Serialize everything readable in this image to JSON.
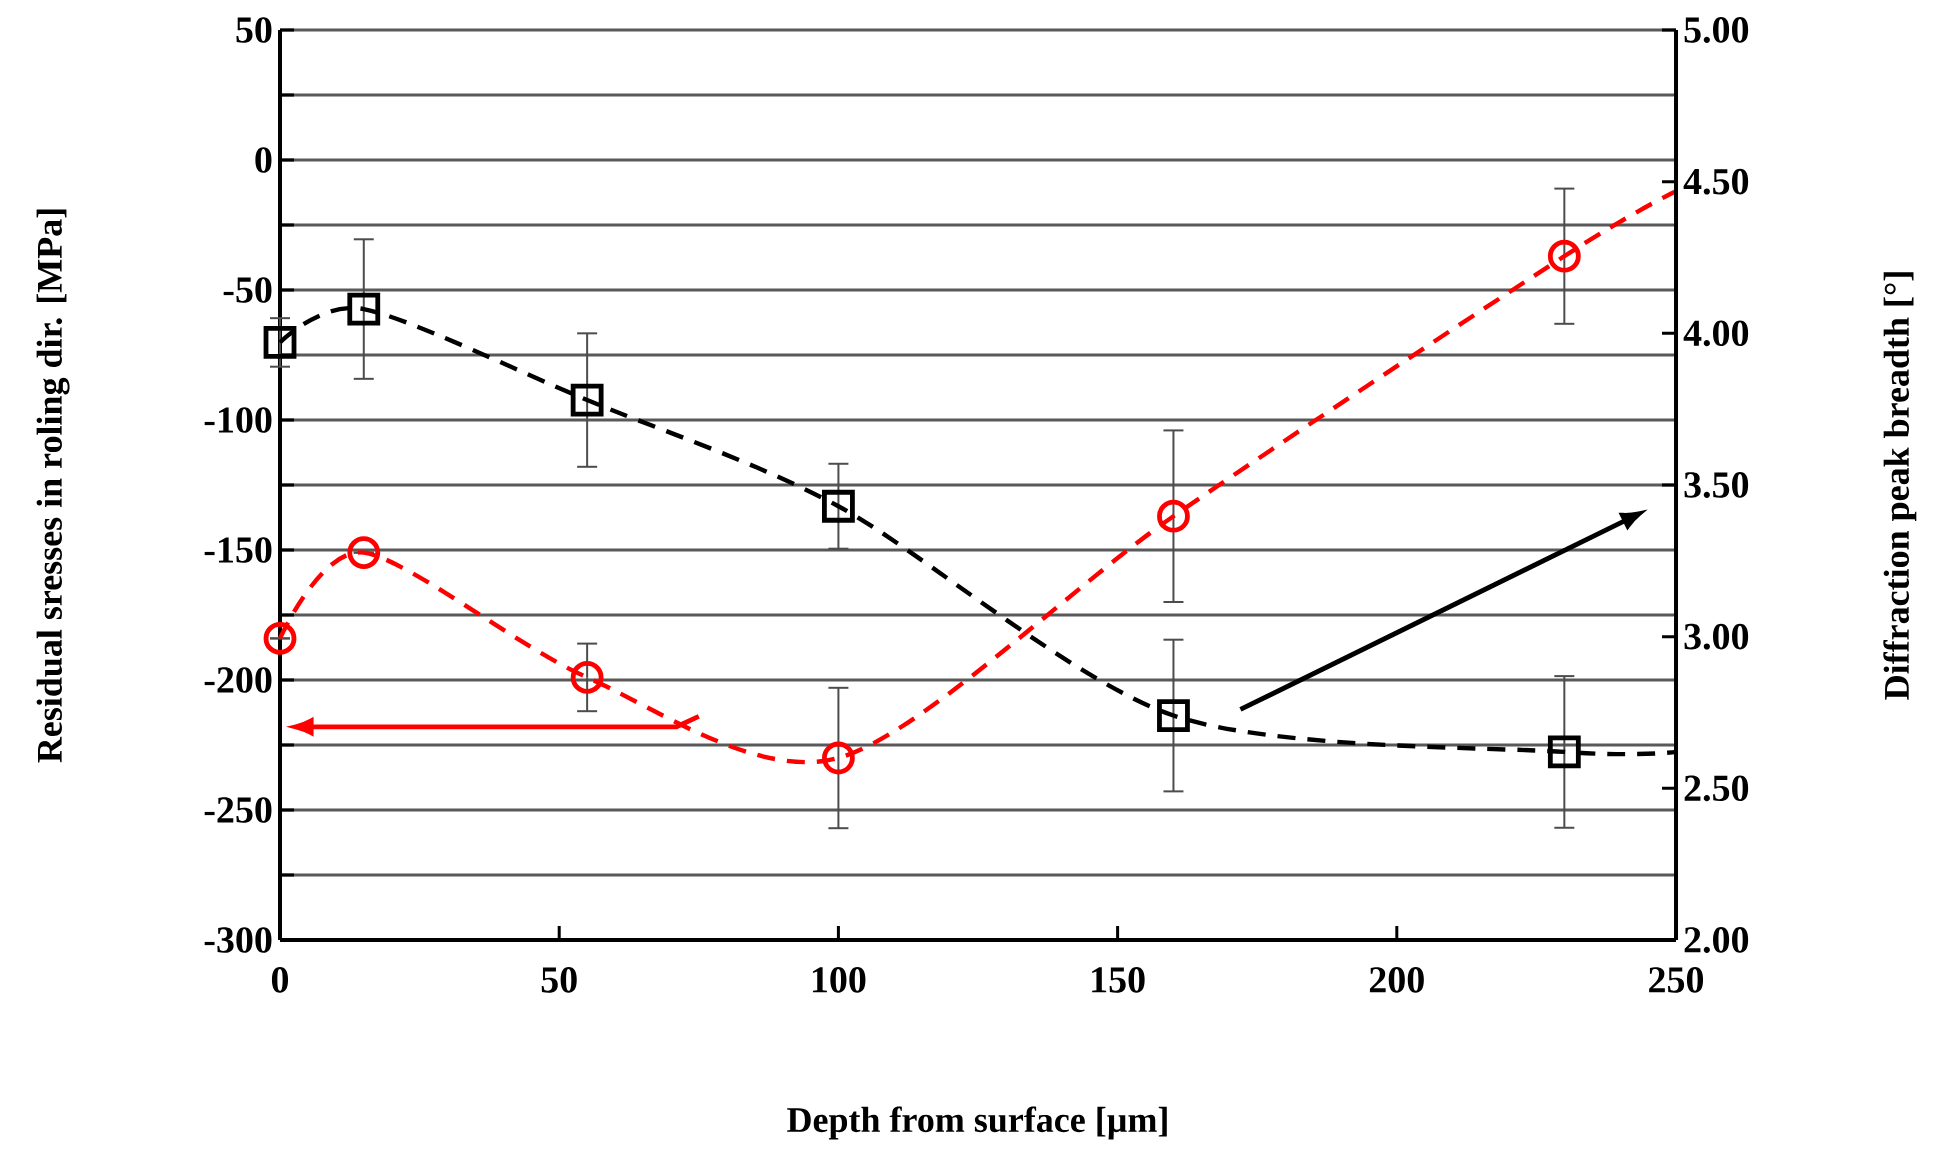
{
  "chart_data": {
    "type": "scatter",
    "xlabel": "Depth from surface  [µm]",
    "ylabel": "Residual sresses in roling dir. [MPa]",
    "y2label": "Diffraction  peak breadth [°]",
    "x": [
      0,
      15,
      55,
      100,
      160,
      230
    ],
    "xlim": [
      0,
      250
    ],
    "xticks": [
      0,
      50,
      100,
      150,
      200,
      250
    ],
    "ylim": [
      -300,
      50
    ],
    "yticks": [
      -300,
      {
        "value": -275,
        "label": null
      },
      -250,
      {
        "value": -225,
        "label": null
      },
      -200,
      {
        "value": -175,
        "label": null
      },
      -150,
      {
        "value": -125,
        "label": null
      },
      -100,
      {
        "value": -75,
        "label": null
      },
      -50,
      {
        "value": -25,
        "label": null
      },
      0,
      {
        "value": 25,
        "label": null
      },
      50
    ],
    "y2lim": [
      2,
      5
    ],
    "y2ticks": [
      {
        "value": 2,
        "label": "2.00"
      },
      {
        "value": 2.5,
        "label": "2.50"
      },
      {
        "value": 3,
        "label": "3.00"
      },
      {
        "value": 3.5,
        "label": "3.50"
      },
      {
        "value": 4,
        "label": "4.00"
      },
      {
        "value": 4.5,
        "label": "4.50"
      },
      {
        "value": 5,
        "label": "5.00"
      }
    ],
    "grid": "y",
    "series": [
      {
        "type": "scatter",
        "color": "#ff0000",
        "marker": "circle",
        "values": [
          -184,
          -151,
          -199,
          -230,
          -137,
          -37
        ],
        "errors": [
          null,
          null,
          13,
          27,
          33,
          26
        ]
      },
      {
        "type": "line",
        "color": "#ff0000",
        "marker": "none",
        "line_style": "dashed",
        "x": [
          0,
          15,
          55,
          100,
          160,
          230,
          250
        ],
        "values": [
          -184,
          -151,
          -199,
          -230,
          -137,
          -37,
          -12
        ]
      },
      {
        "type": "scatter",
        "color": "#000000",
        "marker": "square",
        "axis": "y2",
        "values": [
          3.97,
          4.08,
          3.78,
          3.43,
          2.74,
          2.62
        ],
        "errors": [
          0.08,
          0.23,
          0.22,
          0.14,
          0.25,
          0.25
        ]
      },
      {
        "type": "line",
        "color": "#000000",
        "marker": "none",
        "line_style": "dashed",
        "axis": "y2",
        "x": [
          0,
          15,
          55,
          100,
          160,
          230,
          250
        ],
        "values": [
          3.97,
          4.08,
          3.78,
          3.43,
          2.74,
          2.62,
          2.62
        ]
      }
    ]
  }
}
